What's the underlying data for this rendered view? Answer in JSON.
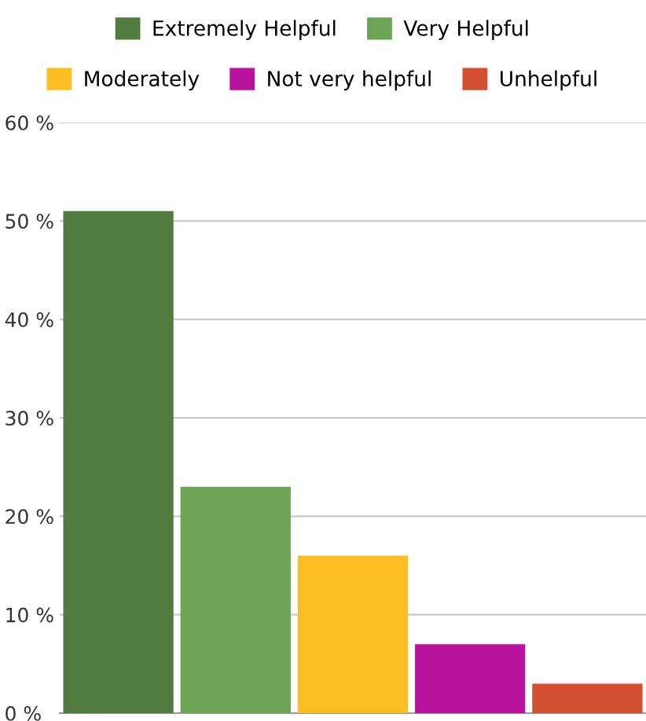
{
  "chart_data": {
    "type": "bar",
    "categories": [
      null,
      null,
      null,
      null,
      null
    ],
    "series": [
      {
        "name": "Extremely Helpful",
        "color": "#517b3f",
        "values": [
          51,
          null,
          null,
          null,
          null
        ]
      },
      {
        "name": "Very Helpful",
        "color": "#6ca355",
        "values": [
          null,
          23,
          null,
          null,
          null
        ]
      },
      {
        "name": "Moderately",
        "color": "#fcbe22",
        "values": [
          null,
          null,
          16,
          null,
          null
        ]
      },
      {
        "name": "Not very helpful",
        "color": "#b8129e",
        "values": [
          null,
          null,
          null,
          7,
          null
        ]
      },
      {
        "name": "Unhelpful",
        "color": "#d24f32",
        "values": [
          null,
          null,
          null,
          null,
          3
        ]
      }
    ],
    "ylim": [
      0,
      60
    ],
    "yticks": [
      {
        "value": 0,
        "label": "0 %"
      },
      {
        "value": 10,
        "label": "10 %"
      },
      {
        "value": 20,
        "label": "20 %"
      },
      {
        "value": 30,
        "label": "30 %"
      },
      {
        "value": 40,
        "label": "40 %"
      },
      {
        "value": 50,
        "label": "50 %"
      },
      {
        "value": 60,
        "label": "60 %"
      }
    ],
    "grid": "y",
    "legend": "top"
  }
}
